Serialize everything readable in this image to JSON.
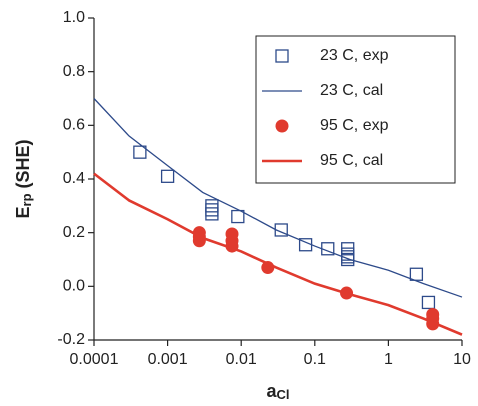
{
  "chart_data": {
    "type": "scatter",
    "xlabel": [
      "a",
      "Cl"
    ],
    "ylabel": [
      "E",
      "rp",
      " (SHE)"
    ],
    "xscale": "log",
    "xlim": [
      0.0001,
      10
    ],
    "xticks": [
      0.0001,
      0.001,
      0.01,
      0.1,
      1,
      10
    ],
    "ylim": [
      -0.2,
      1.0
    ],
    "yticks": [
      {
        "value": -0.2,
        "label": "-0.2"
      },
      {
        "value": 0,
        "label": "0.0"
      },
      {
        "value": 0.2,
        "label": "0.2"
      },
      {
        "value": 0.4,
        "label": "0.4"
      },
      {
        "value": 0.6,
        "label": "0.6"
      },
      {
        "value": 0.8,
        "label": "0.8"
      },
      {
        "value": 1.0,
        "label": "1.0"
      }
    ],
    "legend": "upper right",
    "series": [
      {
        "name": "23 C, exp",
        "color": "#2d4a8a",
        "marker": "square",
        "x": [
          0.00042,
          0.001,
          0.004,
          0.004,
          0.004,
          0.009,
          0.035,
          0.075,
          0.15,
          0.28,
          0.28,
          0.28,
          0.28,
          2.4,
          3.5
        ],
        "values": [
          0.5,
          0.41,
          0.3,
          0.285,
          0.27,
          0.26,
          0.21,
          0.155,
          0.14,
          0.14,
          0.12,
          0.11,
          0.1,
          0.045,
          -0.06
        ]
      },
      {
        "name": "23 C, cal",
        "color": "#2d4a8a",
        "marker": "line",
        "x": [
          0.0001,
          0.0003,
          0.001,
          0.003,
          0.01,
          0.03,
          0.1,
          0.3,
          1,
          3,
          10
        ],
        "values": [
          0.7,
          0.56,
          0.45,
          0.35,
          0.28,
          0.21,
          0.15,
          0.1,
          0.06,
          0.01,
          -0.04
        ]
      },
      {
        "name": "95 C, exp",
        "color": "#e03a2e",
        "marker": "circle",
        "x": [
          0.0027,
          0.0027,
          0.0027,
          0.0075,
          0.0075,
          0.0075,
          0.023,
          0.27,
          4.0,
          4.0,
          4.0
        ],
        "values": [
          0.2,
          0.185,
          0.17,
          0.195,
          0.17,
          0.15,
          0.07,
          -0.025,
          -0.105,
          -0.12,
          -0.14
        ]
      },
      {
        "name": "95 C, cal",
        "color": "#e03a2e",
        "marker": "line",
        "x": [
          0.0001,
          0.0003,
          0.001,
          0.003,
          0.01,
          0.03,
          0.1,
          0.3,
          1,
          3,
          10
        ],
        "values": [
          0.42,
          0.32,
          0.25,
          0.18,
          0.13,
          0.07,
          0.01,
          -0.03,
          -0.07,
          -0.12,
          -0.18
        ]
      }
    ]
  }
}
